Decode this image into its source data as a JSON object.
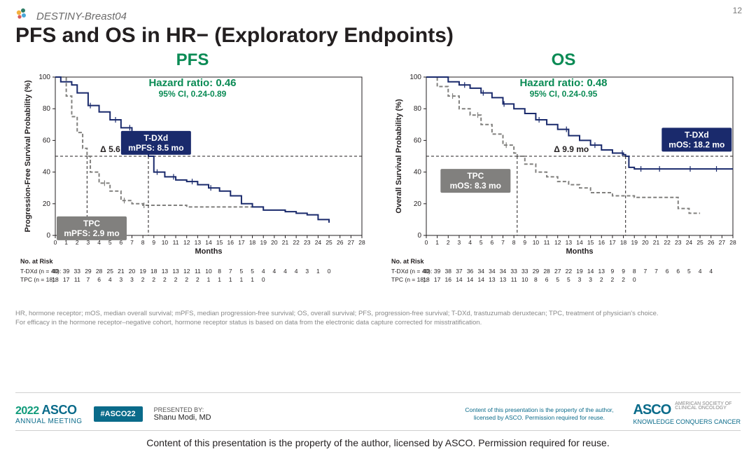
{
  "page_number": "12",
  "trial_name": "DESTINY-Breast04",
  "slide_title": "PFS and OS in HR− (Exploratory Endpoints)",
  "panels": {
    "pfs": {
      "panel_title": "PFS",
      "hazard_ratio_label": "Hazard ratio",
      "hazard_ratio_value": "0.46",
      "ci_text": "95% CI, 0.24-0.89",
      "y_axis_label": "Progression-Free Survival Probability (%)",
      "x_axis_label": "Months",
      "delta_text": "Δ 5.6 mo",
      "callout_a": {
        "line1": "T-DXd",
        "line2": "mPFS: 8.5 mo",
        "bg": "#1a2a6c"
      },
      "callout_b": {
        "line1": "TPC",
        "line2": "mPFS: 2.9 mo",
        "bg": "#81807e"
      },
      "at_risk_header": "No. at Risk",
      "at_risk": [
        {
          "label": "T-DXd (n = 40):",
          "vals": [
            40,
            39,
            33,
            29,
            28,
            25,
            21,
            20,
            19,
            18,
            13,
            13,
            12,
            11,
            10,
            8,
            7,
            5,
            5,
            4,
            4,
            4,
            4,
            3,
            1,
            0
          ]
        },
        {
          "label": "TPC (n = 18):",
          "vals": [
            18,
            17,
            11,
            7,
            6,
            4,
            3,
            3,
            2,
            2,
            2,
            2,
            2,
            2,
            1,
            1,
            1,
            1,
            1,
            0
          ]
        }
      ]
    },
    "os": {
      "panel_title": "OS",
      "hazard_ratio_label": "Hazard ratio",
      "hazard_ratio_value": "0.48",
      "ci_text": "95% CI, 0.24-0.95",
      "y_axis_label": "Overall Survival Probability (%)",
      "x_axis_label": "Months",
      "delta_text": "Δ 9.9 mo",
      "callout_a": {
        "line1": "T-DXd",
        "line2": "mOS: 18.2 mo",
        "bg": "#1a2a6c"
      },
      "callout_b": {
        "line1": "TPC",
        "line2": "mOS: 8.3 mo",
        "bg": "#81807e"
      },
      "at_risk_header": "No. at Risk",
      "at_risk": [
        {
          "label": "T-DXd (n = 40):",
          "vals": [
            40,
            39,
            38,
            37,
            36,
            34,
            34,
            34,
            33,
            33,
            29,
            28,
            27,
            22,
            19,
            14,
            13,
            9,
            9,
            8,
            7,
            7,
            6,
            6,
            5,
            4,
            4
          ]
        },
        {
          "label": "TPC (n = 18):",
          "vals": [
            18,
            17,
            16,
            14,
            14,
            14,
            13,
            13,
            11,
            10,
            8,
            6,
            5,
            5,
            3,
            3,
            2,
            2,
            2,
            0
          ]
        }
      ]
    }
  },
  "chart_style": {
    "type": "kaplan-meier-step",
    "xlim": [
      0,
      28
    ],
    "ylim": [
      0,
      100
    ],
    "x_ticks": [
      0,
      1,
      2,
      3,
      4,
      5,
      6,
      7,
      8,
      9,
      10,
      11,
      12,
      13,
      14,
      15,
      16,
      17,
      18,
      19,
      20,
      21,
      22,
      23,
      24,
      25,
      26,
      27,
      28
    ],
    "y_ticks": [
      0,
      20,
      40,
      60,
      80,
      100
    ],
    "y_median": 50,
    "colors": {
      "series_a": "#1a2a6c",
      "series_b": "#81807e",
      "axis": "#231f20",
      "background": "#ffffff",
      "hr_text": "#0b8b55"
    },
    "series_b_dash": "5 3"
  },
  "km_data": {
    "pfs": {
      "a": [
        [
          0,
          100
        ],
        [
          0.5,
          97
        ],
        [
          1.5,
          95
        ],
        [
          2,
          90
        ],
        [
          3,
          82
        ],
        [
          4,
          78
        ],
        [
          5,
          73
        ],
        [
          6,
          68
        ],
        [
          7,
          65
        ],
        [
          8,
          63
        ],
        [
          8.5,
          50
        ],
        [
          9,
          40
        ],
        [
          10,
          37
        ],
        [
          11,
          35
        ],
        [
          12,
          34
        ],
        [
          13,
          32
        ],
        [
          14,
          30
        ],
        [
          15,
          28
        ],
        [
          16,
          25
        ],
        [
          17,
          20
        ],
        [
          18,
          18
        ],
        [
          19,
          16
        ],
        [
          20,
          16
        ],
        [
          21,
          15
        ],
        [
          22,
          14
        ],
        [
          23,
          13
        ],
        [
          24,
          10
        ],
        [
          25,
          8
        ]
      ],
      "a_censors": [
        3.2,
        5.5,
        6.8,
        9.3,
        10.8,
        12.5,
        14.2
      ],
      "a_median_x": 8.5,
      "b": [
        [
          0,
          100
        ],
        [
          1,
          88
        ],
        [
          1.5,
          75
        ],
        [
          2,
          65
        ],
        [
          2.5,
          55
        ],
        [
          2.9,
          50
        ],
        [
          3.2,
          40
        ],
        [
          4,
          33
        ],
        [
          5,
          28
        ],
        [
          6,
          22
        ],
        [
          7,
          20
        ],
        [
          8,
          19
        ],
        [
          10,
          19
        ],
        [
          12,
          18
        ],
        [
          14,
          18
        ],
        [
          16,
          18
        ],
        [
          18,
          18
        ]
      ],
      "b_censors": [
        4.5,
        6.3,
        8.1
      ],
      "b_median_x": 2.9
    },
    "os": {
      "a": [
        [
          0,
          100
        ],
        [
          1,
          100
        ],
        [
          2,
          97
        ],
        [
          3,
          95
        ],
        [
          4,
          93
        ],
        [
          5,
          90
        ],
        [
          6,
          87
        ],
        [
          7,
          83
        ],
        [
          8,
          80
        ],
        [
          9,
          77
        ],
        [
          10,
          73
        ],
        [
          11,
          70
        ],
        [
          12,
          67
        ],
        [
          13,
          63
        ],
        [
          14,
          60
        ],
        [
          15,
          57
        ],
        [
          16,
          54
        ],
        [
          17,
          52
        ],
        [
          18,
          51
        ],
        [
          18.2,
          50
        ],
        [
          18.5,
          43
        ],
        [
          19,
          42
        ],
        [
          22,
          42
        ],
        [
          25,
          42
        ],
        [
          28,
          42
        ]
      ],
      "a_censors": [
        3.5,
        5.2,
        7.1,
        10.3,
        12.8,
        15.4,
        17.9,
        19.6,
        21.3,
        24.1,
        26.5
      ],
      "a_median_x": 18.2,
      "b": [
        [
          0,
          100
        ],
        [
          1,
          94
        ],
        [
          2,
          88
        ],
        [
          3,
          80
        ],
        [
          4,
          76
        ],
        [
          5,
          70
        ],
        [
          6,
          64
        ],
        [
          7,
          57
        ],
        [
          8,
          52
        ],
        [
          8.3,
          50
        ],
        [
          9,
          45
        ],
        [
          10,
          40
        ],
        [
          11,
          37
        ],
        [
          12,
          34
        ],
        [
          13,
          32
        ],
        [
          14,
          30
        ],
        [
          15,
          27
        ],
        [
          17,
          25
        ],
        [
          19,
          24
        ],
        [
          21,
          24
        ],
        [
          23,
          17
        ],
        [
          24,
          14
        ],
        [
          25,
          14
        ]
      ],
      "b_censors": [
        2.4,
        4.7,
        7.3
      ],
      "b_median_x": 8.3
    }
  },
  "footnote": {
    "line1": "HR, hormone receptor; mOS, median overall survival; mPFS, median progression-free survival; OS, overall survival; PFS, progression-free survival; T-DXd, trastuzumab deruxtecan; TPC, treatment of physician's choice.",
    "line2": "For efficacy in the hormone receptor–negative cohort, hormone receptor status is based on data from the electronic data capture corrected for misstratification."
  },
  "footer": {
    "year": "2022",
    "asco": "ASCO",
    "meeting": "ANNUAL MEETING",
    "hashtag": "#ASCO22",
    "presented_by_label": "PRESENTED BY:",
    "presented_by": "Shanu Modi, MD",
    "credit": "Content of this presentation is the property of the author, licensed by ASCO. Permission required for reuse.",
    "asco_sub": "KNOWLEDGE CONQUERS CANCER",
    "asco_small1": "AMERICAN SOCIETY OF",
    "asco_small2": "CLINICAL ONCOLOGY"
  },
  "reproduction_note": "Content of this presentation is the property of the author, licensed by ASCO. Permission required for reuse."
}
